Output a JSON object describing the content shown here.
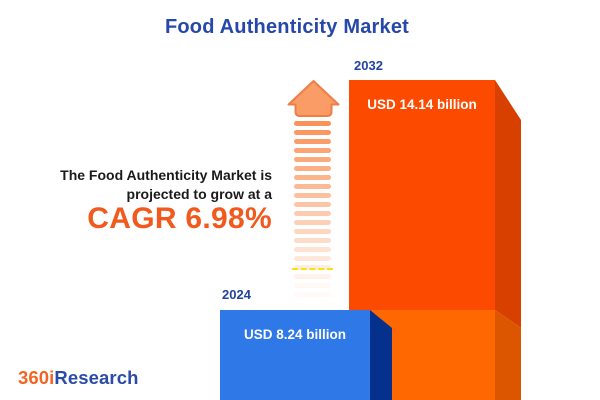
{
  "title": "Food Authenticity Market",
  "annotation": {
    "line1": "The Food Authenticity Market is",
    "line2": "projected to grow at a",
    "cagr": "CAGR 6.98%"
  },
  "bars": [
    {
      "year": "2024",
      "value_label": "USD 8.24 billion"
    },
    {
      "year": "2032",
      "value_label": "USD 14.14 billion"
    }
  ],
  "logo": {
    "prefix": "360i",
    "suffix": "Research"
  },
  "colors": {
    "title-blue": "#2648A8",
    "year-navy": "#2443A0",
    "text-dark": "#1A1A1A",
    "accent-orange": "#F1591D",
    "bar2032-front-top": "#FC4A00",
    "bar2032-front-bottom": "#FF6700",
    "bar2032-side-top": "#D84000",
    "bar2032-side-bottom": "#DC5600",
    "bar2024-front": "#2E78E8",
    "bar2024-side": "#05318C",
    "arrow-fill": "#F99C66",
    "arrow-stroke": "#EE7E47",
    "stripe-base": "251,146,90",
    "dash-yellow": "#F6E400",
    "logo-orange": "#F26522",
    "logo-blue": "#2B4BA8"
  },
  "chart_data": {
    "type": "bar",
    "title": "Food Authenticity Market",
    "categories": [
      "2024",
      "2032"
    ],
    "values": [
      8.24,
      14.14
    ],
    "unit": "USD billion",
    "value_labels": [
      "USD 8.24 billion",
      "USD 14.14 billion"
    ],
    "cagr_percent": 6.98,
    "annotation": "The Food Authenticity Market is projected to grow at a CAGR 6.98%",
    "legend": "none",
    "orientation": "vertical",
    "style": "3d-extruded-infographic"
  }
}
